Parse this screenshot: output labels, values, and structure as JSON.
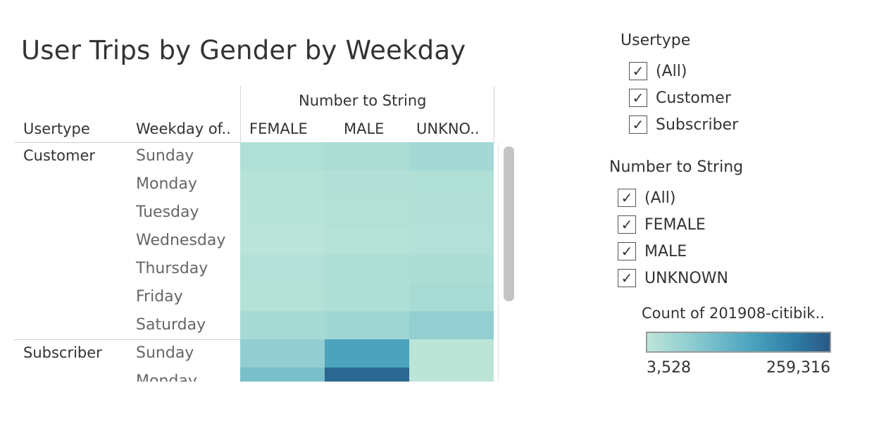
{
  "title": "User Trips by Gender by Weekday",
  "headers": {
    "column_group": "Number to String",
    "dim1": "Usertype",
    "dim2": "Weekday of..",
    "columns": [
      "FEMALE",
      "MALE",
      "UNKNO.."
    ]
  },
  "groups": [
    {
      "label": "Customer",
      "rows": [
        "Sunday",
        "Monday",
        "Tuesday",
        "Wednesday",
        "Thursday",
        "Friday",
        "Saturday"
      ]
    },
    {
      "label": "Subscriber",
      "rows": [
        "Sunday",
        "Monday"
      ]
    }
  ],
  "filters": {
    "usertype": {
      "title": "Usertype",
      "items": [
        "(All)",
        "Customer",
        "Subscriber"
      ]
    },
    "gender": {
      "title": "Number to String",
      "items": [
        "(All)",
        "FEMALE",
        "MALE",
        "UNKNOWN"
      ]
    }
  },
  "legend": {
    "title": "Count of 201908-citibik..",
    "min_label": "3,528",
    "max_label": "259,316"
  },
  "colors": {
    "scale_low": "#bde6d8",
    "scale_mid": "#4ea7c0",
    "scale_high": "#2a5986"
  },
  "chart_data": {
    "type": "heatmap",
    "x_categories": [
      "FEMALE",
      "MALE",
      "UNKNO.."
    ],
    "y_categories": [
      "Customer / Sunday",
      "Customer / Monday",
      "Customer / Tuesday",
      "Customer / Wednesday",
      "Customer / Thursday",
      "Customer / Friday",
      "Customer / Saturday",
      "Subscriber / Sunday",
      "Subscriber / Monday"
    ],
    "values": [
      [
        20000,
        26000,
        37000
      ],
      [
        12000,
        18000,
        20000
      ],
      [
        10000,
        16000,
        18000
      ],
      [
        9000,
        13000,
        15000
      ],
      [
        15000,
        22000,
        26000
      ],
      [
        14000,
        22000,
        30000
      ],
      [
        32000,
        40000,
        58000
      ],
      [
        60000,
        150000,
        5000
      ],
      [
        90000,
        240000,
        5000
      ]
    ],
    "scale": {
      "min": 3528,
      "max": 259316
    }
  }
}
